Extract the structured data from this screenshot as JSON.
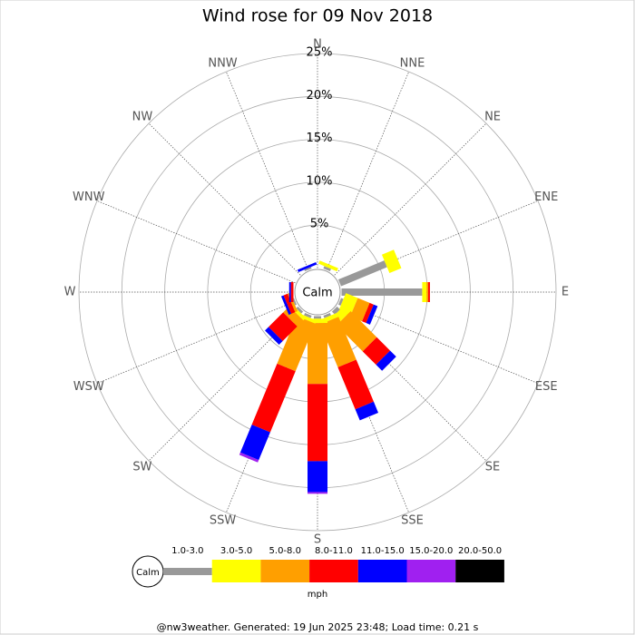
{
  "chart_data": {
    "type": "windrose",
    "title": "Wind rose for 09 Nov 2018",
    "categories": [
      "N",
      "NNE",
      "NE",
      "ENE",
      "E",
      "ESE",
      "SE",
      "SSE",
      "S",
      "SSW",
      "SW",
      "WSW",
      "W",
      "WNW",
      "NW",
      "NNW"
    ],
    "calm_label": "Calm",
    "units": "mph",
    "rlim": [
      0,
      25
    ],
    "rticks": [
      {
        "value": 5,
        "label": "5%"
      },
      {
        "value": 10,
        "label": "10%"
      },
      {
        "value": 15,
        "label": "15%"
      },
      {
        "value": 20,
        "label": "20%"
      },
      {
        "value": 25,
        "label": "25%"
      }
    ],
    "series": [
      {
        "name": "1.0-3.0",
        "color": "#999999",
        "values": [
          0,
          0.3,
          0,
          5.8,
          9.4,
          0.3,
          0.5,
          0.3,
          0.3,
          0.3,
          0.3,
          0.2,
          0,
          0,
          0,
          0.2
        ]
      },
      {
        "name": "3.0-5.0",
        "color": "#ffff00",
        "values": [
          0,
          0.4,
          0,
          1.5,
          0.5,
          1.5,
          1.0,
          0.5,
          0.5,
          0.4,
          0.4,
          0,
          0,
          0,
          0,
          0
        ]
      },
      {
        "name": "5.0-8.0",
        "color": "#ff9f00",
        "values": [
          0,
          0,
          0,
          0,
          0.2,
          1.5,
          4.3,
          5.4,
          7.1,
          6.0,
          1.0,
          0.3,
          0,
          0,
          0,
          0
        ]
      },
      {
        "name": "8.0-11.0",
        "color": "#ff0000",
        "values": [
          0,
          0,
          0,
          0,
          0.2,
          0.5,
          2.2,
          5.3,
          9.0,
          7.7,
          2.4,
          0.5,
          0.3,
          0,
          0,
          0
        ]
      },
      {
        "name": "11.0-15.0",
        "color": "#0000ff",
        "values": [
          0,
          0,
          0,
          0,
          0,
          0.5,
          1.0,
          1.4,
          3.6,
          3.5,
          0.6,
          0.3,
          0.2,
          0,
          0,
          0.3
        ]
      },
      {
        "name": "15.0-20.0",
        "color": "#a020f0",
        "values": [
          0,
          0,
          0,
          0,
          0,
          0,
          0,
          0,
          0.2,
          0.3,
          0,
          0,
          0,
          0,
          0,
          0
        ]
      },
      {
        "name": "20.0-50.0",
        "color": "#000000",
        "values": [
          0,
          0,
          0,
          0,
          0,
          0,
          0,
          0,
          0,
          0,
          0,
          0,
          0,
          0,
          0,
          0
        ]
      }
    ],
    "footer": "@nw3weather. Generated: 19 Jun 2025 23:48; Load time: 0.21 s"
  }
}
